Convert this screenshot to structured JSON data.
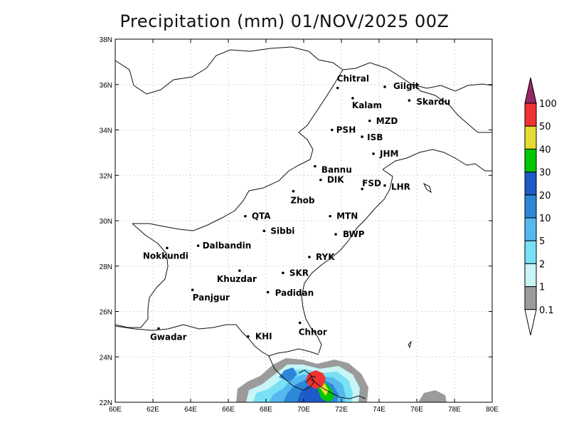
{
  "title": "Precipitation (mm) 01/NOV/2025 00Z",
  "lat_labels": [
    "38N",
    "36N",
    "34N",
    "32N",
    "30N",
    "28N",
    "26N",
    "24N",
    "22N"
  ],
  "lon_labels": [
    "60E",
    "62E",
    "64E",
    "66E",
    "68E",
    "70E",
    "72E",
    "74E",
    "76E",
    "78E",
    "80E"
  ],
  "extent": {
    "lon": [
      60,
      80
    ],
    "lat": [
      22,
      38
    ]
  },
  "grid": "dotted",
  "colorbar": {
    "levels": [
      "0.1",
      "1",
      "2",
      "5",
      "10",
      "20",
      "30",
      "40",
      "50",
      "100"
    ],
    "colors": [
      "#9b9b9b",
      "#c8f5f5",
      "#78e1f5",
      "#55b9f0",
      "#2d87d7",
      "#1e5ac8",
      "#00c800",
      "#e6dc32",
      "#f03232",
      "#962864"
    ],
    "under_color": "#ffffff"
  },
  "stations": [
    {
      "name": "Chitral",
      "lon": 71.8,
      "lat": 35.85
    },
    {
      "name": "Gilgit",
      "lon": 74.3,
      "lat": 35.9
    },
    {
      "name": "Kalam",
      "lon": 72.6,
      "lat": 35.4
    },
    {
      "name": "Skardu",
      "lon": 75.6,
      "lat": 35.3
    },
    {
      "name": "MZD",
      "lon": 73.5,
      "lat": 34.4
    },
    {
      "name": "PSH",
      "lon": 71.5,
      "lat": 34.0
    },
    {
      "name": "ISB",
      "lon": 73.1,
      "lat": 33.7
    },
    {
      "name": "JHM",
      "lon": 73.7,
      "lat": 32.95
    },
    {
      "name": "Bannu",
      "lon": 70.6,
      "lat": 32.4
    },
    {
      "name": "DIK",
      "lon": 70.9,
      "lat": 31.8
    },
    {
      "name": "FSD",
      "lon": 73.1,
      "lat": 31.4
    },
    {
      "name": "LHR",
      "lon": 74.3,
      "lat": 31.55
    },
    {
      "name": "Zhob",
      "lon": 69.45,
      "lat": 31.3
    },
    {
      "name": "QTA",
      "lon": 66.9,
      "lat": 30.2
    },
    {
      "name": "MTN",
      "lon": 71.4,
      "lat": 30.2
    },
    {
      "name": "Sibbi",
      "lon": 67.9,
      "lat": 29.55
    },
    {
      "name": "BWP",
      "lon": 71.7,
      "lat": 29.4
    },
    {
      "name": "Nokkundi",
      "lon": 62.75,
      "lat": 28.8
    },
    {
      "name": "Dalbandin",
      "lon": 64.4,
      "lat": 28.9
    },
    {
      "name": "RYK",
      "lon": 70.3,
      "lat": 28.4
    },
    {
      "name": "Khuzdar",
      "lon": 66.6,
      "lat": 27.8
    },
    {
      "name": "SKR",
      "lon": 68.9,
      "lat": 27.7
    },
    {
      "name": "Panjgur",
      "lon": 64.1,
      "lat": 26.95
    },
    {
      "name": "Padidan",
      "lon": 68.1,
      "lat": 26.85
    },
    {
      "name": "Chhor",
      "lon": 69.8,
      "lat": 25.5
    },
    {
      "name": "KHI",
      "lon": 67.05,
      "lat": 24.9
    },
    {
      "name": "Gwadar",
      "lon": 62.3,
      "lat": 25.25
    }
  ]
}
